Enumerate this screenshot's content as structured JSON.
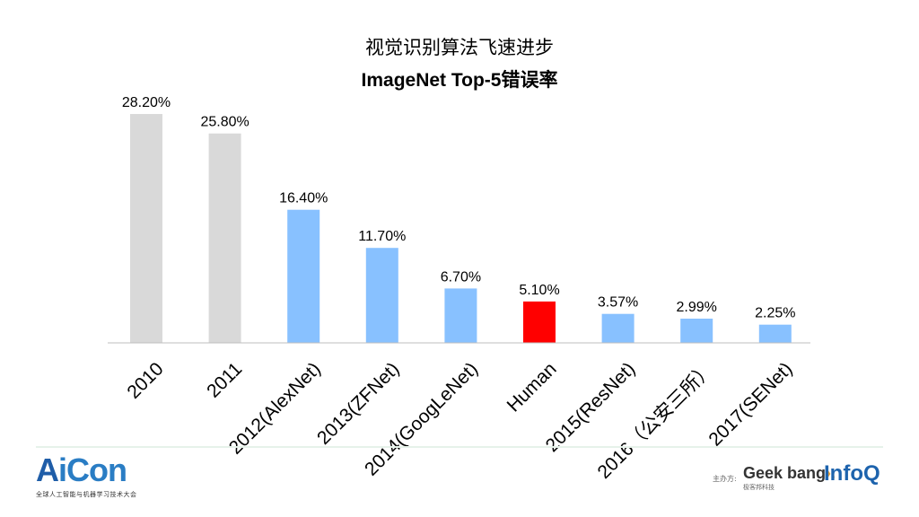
{
  "chart_data": {
    "type": "bar",
    "title": "视觉识别算法飞速进步",
    "subtitle": "ImageNet Top-5错误率",
    "categories": [
      "2010",
      "2011",
      "2012(AlexNet)",
      "2013(ZFNet)",
      "2014(GoogLeNet)",
      "Human",
      "2015(ResNet)",
      "2016（公安三所）",
      "2017(SENet)"
    ],
    "values": [
      28.2,
      25.8,
      16.4,
      11.7,
      6.7,
      5.1,
      3.57,
      2.99,
      2.25
    ],
    "value_labels": [
      "28.20%",
      "25.80%",
      "16.40%",
      "11.70%",
      "6.70%",
      "5.10%",
      "3.57%",
      "2.99%",
      "2.25%"
    ],
    "bar_colors": [
      "#d9d9d9",
      "#d9d9d9",
      "#88c1ff",
      "#88c1ff",
      "#88c1ff",
      "#ff0000",
      "#88c1ff",
      "#88c1ff",
      "#88c1ff"
    ],
    "ylim": [
      0,
      28.2
    ],
    "grid": false,
    "legend": "none"
  },
  "footer": {
    "logo_left_a": "A",
    "logo_left_rest": "iCon",
    "logo_left_sub": "全球人工智能与机器学习技术大会",
    "sponsor_label": "主办方:",
    "geekbang_main": "Geek bang",
    "geekbang_x": "›.",
    "geekbang_sub": "极客邦科技",
    "infoq": "InfoQ"
  },
  "colors": {
    "gray_bar": "#d9d9d9",
    "blue_bar": "#88c1ff",
    "human_bar": "#ff0000",
    "aicon_blue": "#1f5da8",
    "infoq_blue": "#1d63ad"
  }
}
